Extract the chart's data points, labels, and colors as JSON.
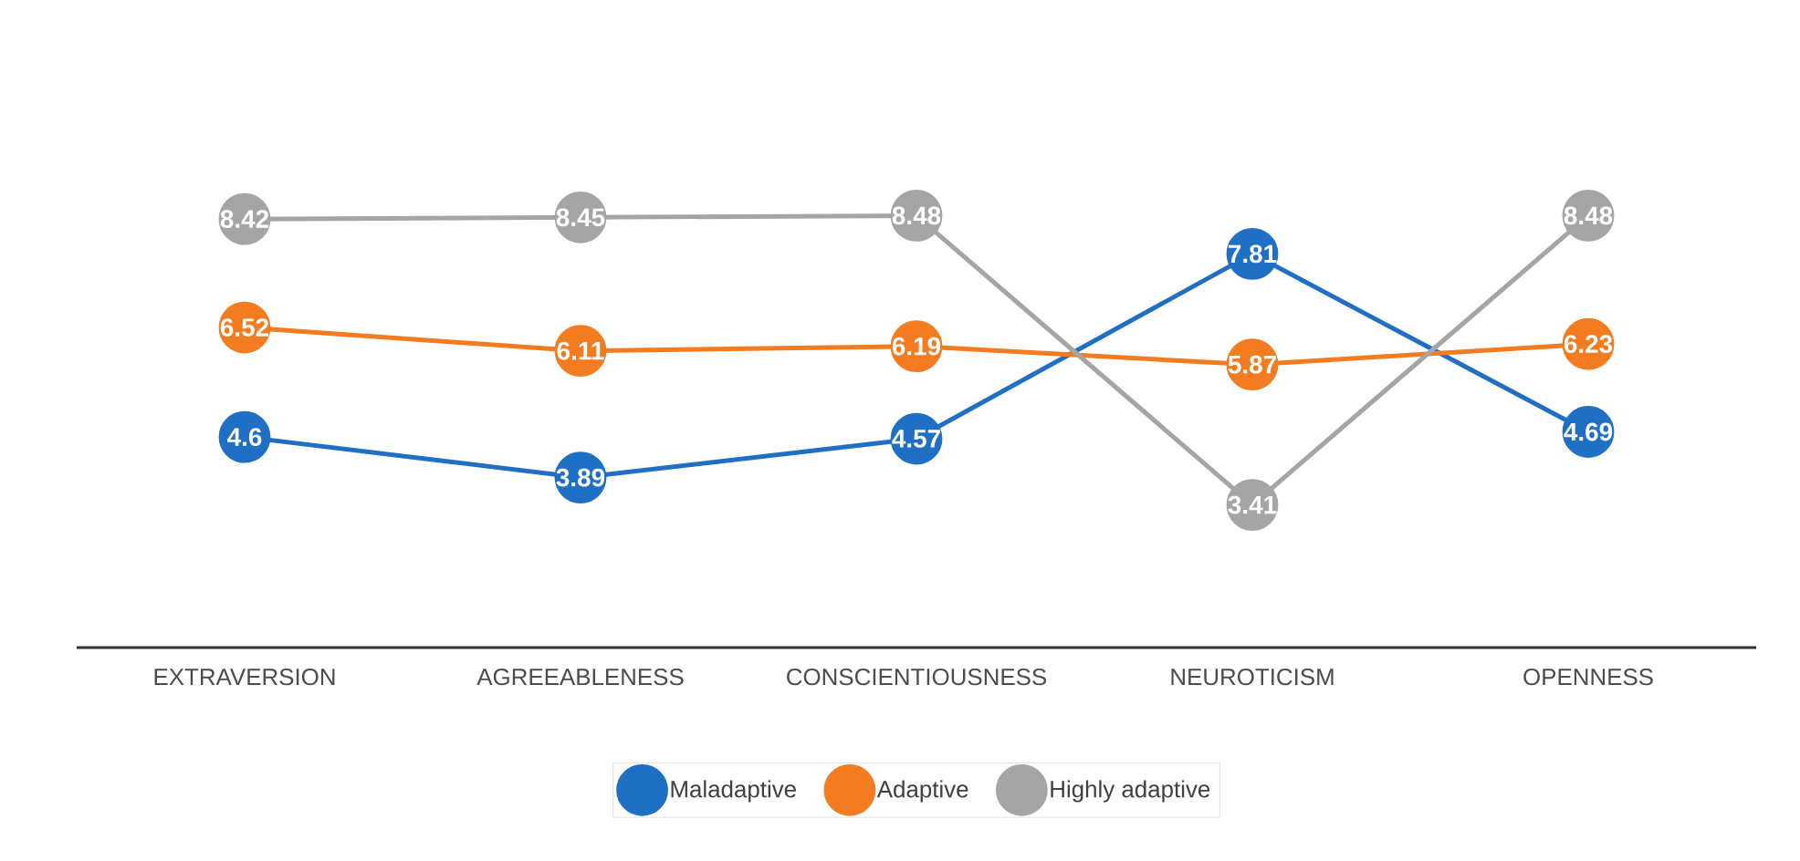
{
  "chart_data": {
    "type": "line",
    "categories": [
      "EXTRAVERSION",
      "AGREEABLENESS",
      "CONSCIENTIOUSNESS",
      "NEUROTICISM",
      "OPENNESS"
    ],
    "series": [
      {
        "name": "Maladaptive",
        "color": "#1f6fc5",
        "values": [
          4.6,
          3.89,
          4.57,
          7.81,
          4.69
        ]
      },
      {
        "name": "Adaptive",
        "color": "#f47c20",
        "values": [
          6.52,
          6.11,
          6.19,
          5.87,
          6.23
        ]
      },
      {
        "name": "Highly adaptive",
        "color": "#a5a5a5",
        "values": [
          8.42,
          8.45,
          8.48,
          3.41,
          8.48
        ]
      }
    ],
    "data_labels": true,
    "marker": "circle",
    "line_style": "solid",
    "legend": "bottom"
  }
}
